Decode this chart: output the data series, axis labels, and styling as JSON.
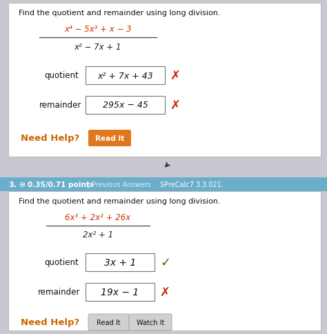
{
  "bg_color": "#c8c8d0",
  "panel1_bg": "#ffffff",
  "panel2_bg": "#ffffff",
  "panel2_header_bg": "#6aaecc",
  "title_text": "Find the quotient and remainder using long division.",
  "p1_numerator": "x⁴ − 5x³ + x − 3",
  "p1_numerator_color": "#cc3300",
  "p1_denominator": "x² − 7x + 1",
  "p1_denominator_color": "#222222",
  "p1_quotient_label": "quotient",
  "p1_quotient_value": "x² + 7x + 43",
  "p1_remainder_label": "remainder",
  "p1_remainder_value": "295x − 45",
  "p1_need_help": "Need Help?",
  "p1_need_help_color": "#cc6600",
  "p1_read_it": "Read It",
  "p1_read_it_bg": "#e07820",
  "wrong_color": "#cc2200",
  "right_color": "#337700",
  "p2_header_num": "3.",
  "p2_dot": "⊕",
  "p2_points": "0.35/0.71 points",
  "p2_pipe": "|",
  "p2_previous": "Previous Answers",
  "p2_course": "SPreCalc7 3.3.021.",
  "p2_title": "Find the quotient and remainder using long division.",
  "p2_numerator": "6x³ + 2x² + 26x",
  "p2_numerator_color": "#cc3300",
  "p2_denominator": "2x² + 1",
  "p2_denominator_color": "#222222",
  "p2_quotient_label": "quotient",
  "p2_quotient_value": "3x + 1",
  "p2_remainder_label": "remainder",
  "p2_remainder_value": "19x − 1",
  "p2_need_help": "Need Help?",
  "p2_need_help_color": "#cc6600",
  "p2_read_it": "Read It",
  "p2_watch_it": "Watch It",
  "p2_btn_bg": "#d0d0d0",
  "p2_btn_border": "#aaaaaa"
}
